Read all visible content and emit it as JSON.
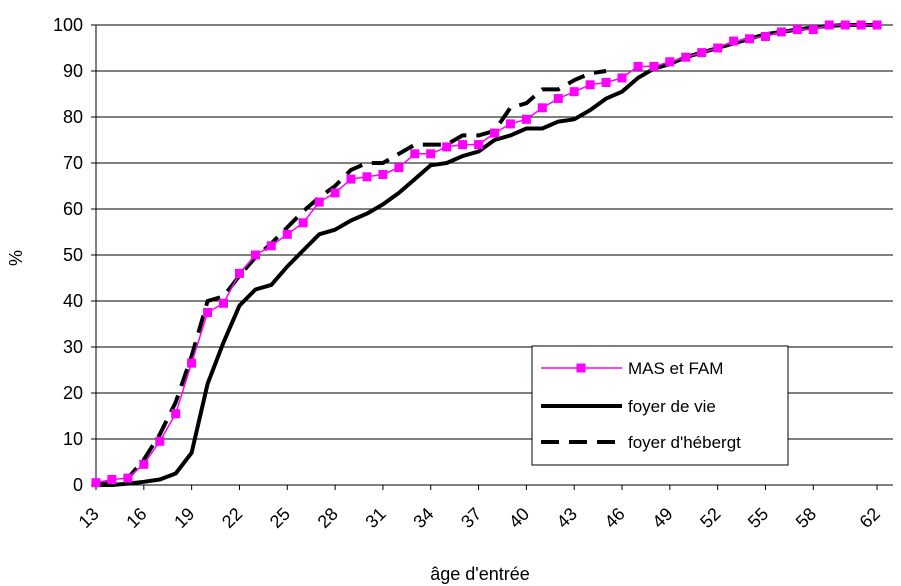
{
  "chart_data": {
    "type": "line",
    "xlabel": "âge d'entrée",
    "ylabel": "%",
    "xlim": [
      13,
      63
    ],
    "ylim": [
      0,
      100
    ],
    "x_ticks": [
      "13",
      "16",
      "19",
      "22",
      "25",
      "28",
      "31",
      "34",
      "37",
      "40",
      "43",
      "46",
      "49",
      "52",
      "55",
      "58",
      "62"
    ],
    "y_ticks": [
      "0",
      "10",
      "20",
      "30",
      "40",
      "50",
      "60",
      "70",
      "80",
      "90",
      "100"
    ],
    "grid": "horizontal",
    "legend_position": "bottom-right",
    "series": [
      {
        "name": "MAS et FAM",
        "color": "#ff00ff",
        "style": "line-square-markers",
        "points": [
          [
            13,
            0.5
          ],
          [
            14,
            1.2
          ],
          [
            15,
            1.5
          ],
          [
            16,
            4.5
          ],
          [
            17,
            9.5
          ],
          [
            18,
            15.5
          ],
          [
            19,
            26.5
          ],
          [
            20,
            37.5
          ],
          [
            21,
            39.5
          ],
          [
            22,
            46
          ],
          [
            23,
            50
          ],
          [
            24,
            52
          ],
          [
            25,
            54.5
          ],
          [
            26,
            57
          ],
          [
            27,
            61.5
          ],
          [
            28,
            63.5
          ],
          [
            29,
            66.5
          ],
          [
            30,
            67
          ],
          [
            31,
            67.5
          ],
          [
            32,
            69
          ],
          [
            33,
            72
          ],
          [
            34,
            72
          ],
          [
            35,
            73.5
          ],
          [
            36,
            74
          ],
          [
            37,
            74
          ],
          [
            38,
            76.5
          ],
          [
            39,
            78.5
          ],
          [
            40,
            79.5
          ],
          [
            41,
            82
          ],
          [
            42,
            84
          ],
          [
            43,
            85.5
          ],
          [
            44,
            87
          ],
          [
            45,
            87.5
          ],
          [
            46,
            88.5
          ],
          [
            47,
            91
          ],
          [
            48,
            91
          ],
          [
            49,
            92
          ],
          [
            50,
            93
          ],
          [
            51,
            94
          ],
          [
            52,
            95
          ],
          [
            53,
            96.5
          ],
          [
            54,
            97
          ],
          [
            55,
            97.5
          ],
          [
            56,
            98.5
          ],
          [
            57,
            99
          ],
          [
            58,
            99
          ],
          [
            59,
            100
          ],
          [
            60,
            100
          ],
          [
            61,
            100
          ],
          [
            62,
            100
          ]
        ]
      },
      {
        "name": "foyer de vie",
        "color": "#000000",
        "style": "solid",
        "points": [
          [
            13,
            0
          ],
          [
            14,
            0
          ],
          [
            15,
            0.3
          ],
          [
            16,
            0.7
          ],
          [
            17,
            1.2
          ],
          [
            18,
            2.5
          ],
          [
            19,
            7
          ],
          [
            20,
            22
          ],
          [
            21,
            31
          ],
          [
            22,
            39
          ],
          [
            23,
            42.5
          ],
          [
            24,
            43.5
          ],
          [
            25,
            47.5
          ],
          [
            26,
            51
          ],
          [
            27,
            54.5
          ],
          [
            28,
            55.5
          ],
          [
            29,
            57.5
          ],
          [
            30,
            59
          ],
          [
            31,
            61
          ],
          [
            32,
            63.5
          ],
          [
            33,
            66.5
          ],
          [
            34,
            69.5
          ],
          [
            35,
            70
          ],
          [
            36,
            71.5
          ],
          [
            37,
            72.5
          ],
          [
            38,
            75
          ],
          [
            39,
            76
          ],
          [
            40,
            77.5
          ],
          [
            41,
            77.5
          ],
          [
            42,
            79
          ],
          [
            43,
            79.5
          ],
          [
            44,
            81.5
          ],
          [
            45,
            84
          ],
          [
            46,
            85.5
          ],
          [
            47,
            88.5
          ],
          [
            48,
            90.5
          ],
          [
            49,
            91.5
          ],
          [
            50,
            93
          ],
          [
            51,
            94
          ],
          [
            52,
            95
          ],
          [
            53,
            96
          ],
          [
            54,
            97
          ],
          [
            55,
            98
          ],
          [
            56,
            98.5
          ],
          [
            57,
            99
          ],
          [
            58,
            99.5
          ],
          [
            59,
            99.8
          ],
          [
            60,
            100
          ],
          [
            61,
            100
          ],
          [
            62,
            100
          ]
        ]
      },
      {
        "name": "foyer d'hébergt",
        "color": "#000000",
        "style": "dashed",
        "points": [
          [
            13,
            0
          ],
          [
            14,
            0.5
          ],
          [
            15,
            1.5
          ],
          [
            16,
            5.5
          ],
          [
            17,
            11
          ],
          [
            18,
            18
          ],
          [
            19,
            28
          ],
          [
            20,
            40
          ],
          [
            21,
            41
          ],
          [
            22,
            45.5
          ],
          [
            23,
            49.5
          ],
          [
            24,
            52.5
          ],
          [
            25,
            56
          ],
          [
            26,
            59.5
          ],
          [
            27,
            62.5
          ],
          [
            28,
            65
          ],
          [
            29,
            68.5
          ],
          [
            30,
            70
          ],
          [
            31,
            70
          ],
          [
            32,
            72
          ],
          [
            33,
            74
          ],
          [
            34,
            74
          ],
          [
            35,
            74
          ],
          [
            36,
            76
          ],
          [
            37,
            76
          ],
          [
            38,
            77
          ],
          [
            39,
            82
          ],
          [
            40,
            83
          ],
          [
            41,
            86
          ],
          [
            42,
            86
          ],
          [
            43,
            88
          ],
          [
            44,
            89.5
          ],
          [
            45,
            90
          ]
        ]
      }
    ]
  }
}
